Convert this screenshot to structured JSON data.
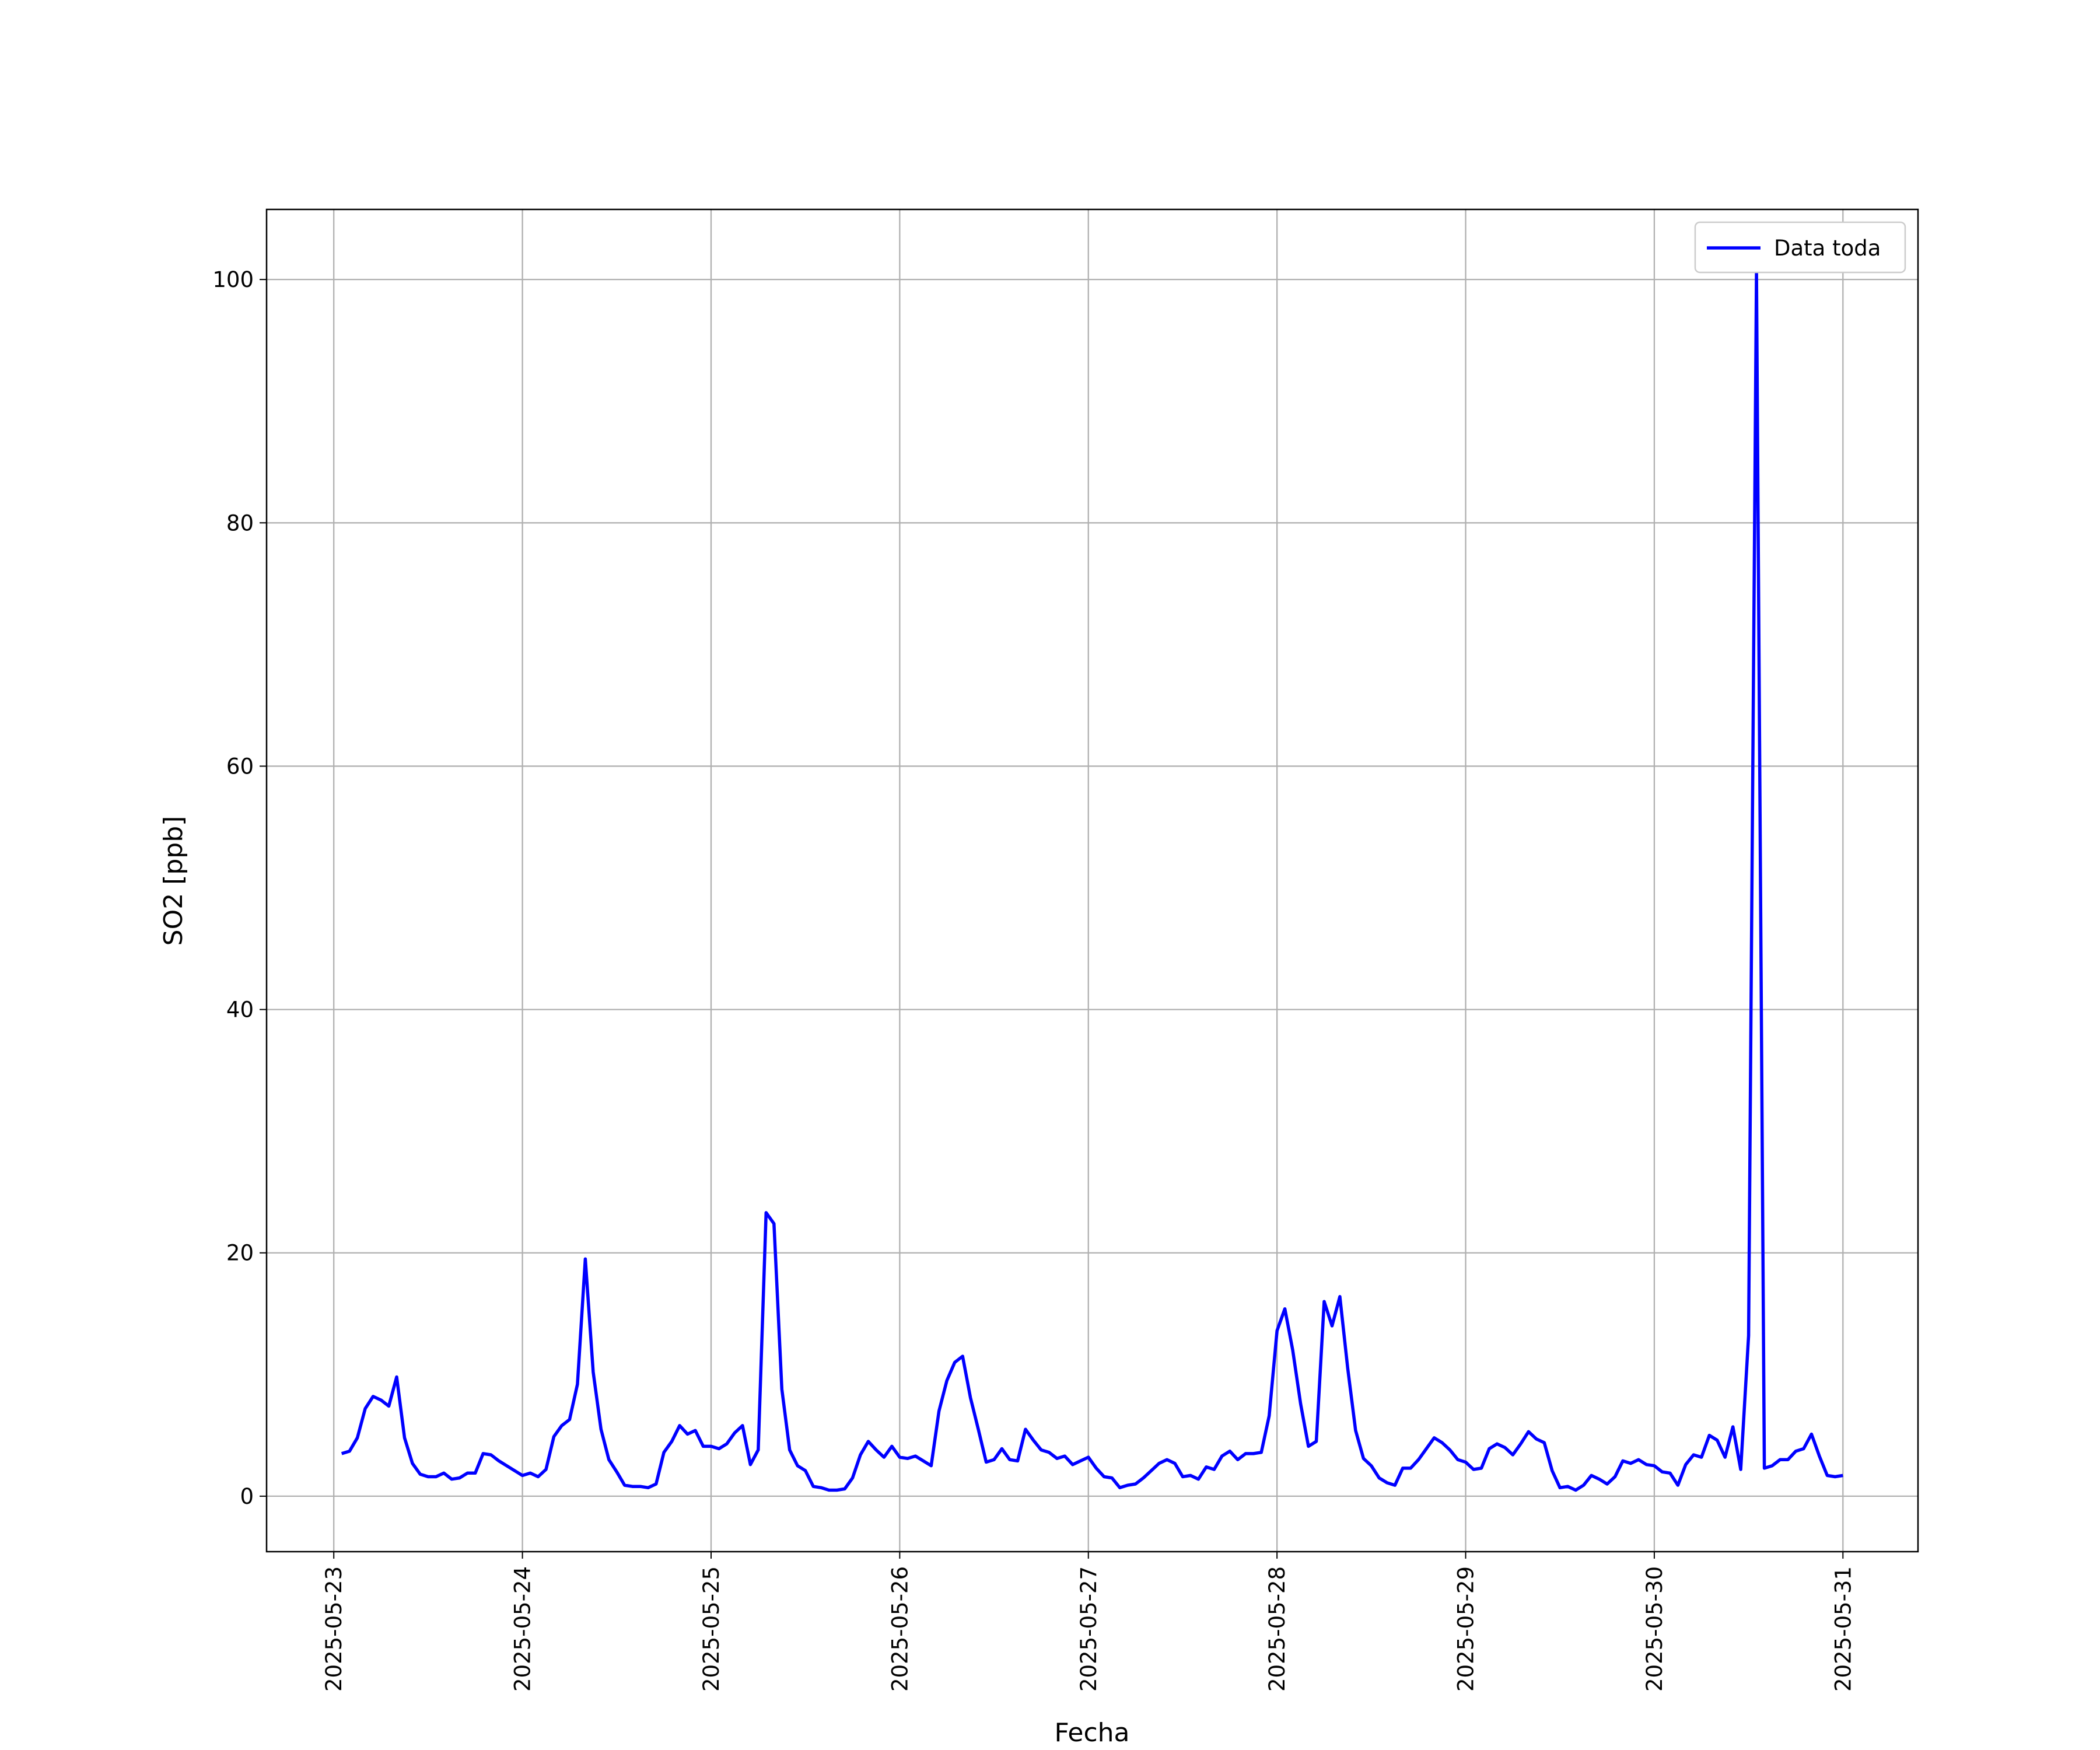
{
  "chart_data": {
    "type": "line",
    "xlabel": "Fecha",
    "ylabel": "SO2 [ppb]",
    "x": [
      "2025-05-23 01:00",
      "2025-05-23 02:00",
      "2025-05-23 03:00",
      "2025-05-23 04:00",
      "2025-05-23 05:00",
      "2025-05-23 06:00",
      "2025-05-23 07:00",
      "2025-05-23 08:00",
      "2025-05-23 09:00",
      "2025-05-23 10:00",
      "2025-05-23 11:00",
      "2025-05-23 12:00",
      "2025-05-23 13:00",
      "2025-05-23 14:00",
      "2025-05-23 15:00",
      "2025-05-23 16:00",
      "2025-05-23 17:00",
      "2025-05-23 18:00",
      "2025-05-23 19:00",
      "2025-05-23 20:00",
      "2025-05-23 21:00",
      "2025-05-23 22:00",
      "2025-05-23 23:00",
      "2025-05-24 00:00",
      "2025-05-24 01:00",
      "2025-05-24 02:00",
      "2025-05-24 03:00",
      "2025-05-24 04:00",
      "2025-05-24 05:00",
      "2025-05-24 06:00",
      "2025-05-24 07:00",
      "2025-05-24 08:00",
      "2025-05-24 09:00",
      "2025-05-24 10:00",
      "2025-05-24 11:00",
      "2025-05-24 12:00",
      "2025-05-24 13:00",
      "2025-05-24 14:00",
      "2025-05-24 15:00",
      "2025-05-24 16:00",
      "2025-05-24 17:00",
      "2025-05-24 18:00",
      "2025-05-24 19:00",
      "2025-05-24 20:00",
      "2025-05-24 21:00",
      "2025-05-24 22:00",
      "2025-05-24 23:00",
      "2025-05-25 00:00",
      "2025-05-25 01:00",
      "2025-05-25 02:00",
      "2025-05-25 03:00",
      "2025-05-25 04:00",
      "2025-05-25 05:00",
      "2025-05-25 06:00",
      "2025-05-25 07:00",
      "2025-05-25 08:00",
      "2025-05-25 09:00",
      "2025-05-25 10:00",
      "2025-05-25 11:00",
      "2025-05-25 12:00",
      "2025-05-25 13:00",
      "2025-05-25 14:00",
      "2025-05-25 15:00",
      "2025-05-25 16:00",
      "2025-05-25 17:00",
      "2025-05-25 18:00",
      "2025-05-25 19:00",
      "2025-05-25 20:00",
      "2025-05-25 21:00",
      "2025-05-25 22:00",
      "2025-05-25 23:00",
      "2025-05-26 00:00",
      "2025-05-26 01:00",
      "2025-05-26 02:00",
      "2025-05-26 03:00",
      "2025-05-26 04:00",
      "2025-05-26 05:00",
      "2025-05-26 06:00",
      "2025-05-26 07:00",
      "2025-05-26 08:00",
      "2025-05-26 09:00",
      "2025-05-26 10:00",
      "2025-05-26 11:00",
      "2025-05-26 12:00",
      "2025-05-26 13:00",
      "2025-05-26 14:00",
      "2025-05-26 15:00",
      "2025-05-26 16:00",
      "2025-05-26 17:00",
      "2025-05-26 18:00",
      "2025-05-26 19:00",
      "2025-05-26 20:00",
      "2025-05-26 21:00",
      "2025-05-26 22:00",
      "2025-05-26 23:00",
      "2025-05-27 00:00",
      "2025-05-27 01:00",
      "2025-05-27 02:00",
      "2025-05-27 03:00",
      "2025-05-27 04:00",
      "2025-05-27 05:00",
      "2025-05-27 06:00",
      "2025-05-27 07:00",
      "2025-05-27 08:00",
      "2025-05-27 09:00",
      "2025-05-27 10:00",
      "2025-05-27 11:00",
      "2025-05-27 12:00",
      "2025-05-27 13:00",
      "2025-05-27 14:00",
      "2025-05-27 15:00",
      "2025-05-27 16:00",
      "2025-05-27 17:00",
      "2025-05-27 18:00",
      "2025-05-27 19:00",
      "2025-05-27 20:00",
      "2025-05-27 21:00",
      "2025-05-27 22:00",
      "2025-05-27 23:00",
      "2025-05-28 00:00",
      "2025-05-28 01:00",
      "2025-05-28 02:00",
      "2025-05-28 03:00",
      "2025-05-28 04:00",
      "2025-05-28 05:00",
      "2025-05-28 06:00",
      "2025-05-28 07:00",
      "2025-05-28 08:00",
      "2025-05-28 09:00",
      "2025-05-28 10:00",
      "2025-05-28 11:00",
      "2025-05-28 12:00",
      "2025-05-28 13:00",
      "2025-05-28 14:00",
      "2025-05-28 15:00",
      "2025-05-28 16:00",
      "2025-05-28 17:00",
      "2025-05-28 18:00",
      "2025-05-28 19:00",
      "2025-05-28 20:00",
      "2025-05-28 21:00",
      "2025-05-28 22:00",
      "2025-05-28 23:00",
      "2025-05-29 00:00",
      "2025-05-29 01:00",
      "2025-05-29 02:00",
      "2025-05-29 03:00",
      "2025-05-29 04:00",
      "2025-05-29 05:00",
      "2025-05-29 06:00",
      "2025-05-29 07:00",
      "2025-05-29 08:00",
      "2025-05-29 09:00",
      "2025-05-29 10:00",
      "2025-05-29 11:00",
      "2025-05-29 12:00",
      "2025-05-29 13:00",
      "2025-05-29 14:00",
      "2025-05-29 15:00",
      "2025-05-29 16:00",
      "2025-05-29 17:00",
      "2025-05-29 18:00",
      "2025-05-29 19:00",
      "2025-05-29 20:00",
      "2025-05-29 21:00",
      "2025-05-29 22:00",
      "2025-05-29 23:00",
      "2025-05-30 00:00",
      "2025-05-30 01:00",
      "2025-05-30 02:00",
      "2025-05-30 03:00",
      "2025-05-30 04:00",
      "2025-05-30 05:00",
      "2025-05-30 06:00",
      "2025-05-30 07:00",
      "2025-05-30 08:00",
      "2025-05-30 09:00",
      "2025-05-30 10:00",
      "2025-05-30 11:00",
      "2025-05-30 12:00",
      "2025-05-30 13:00",
      "2025-05-30 14:00",
      "2025-05-30 15:00",
      "2025-05-30 16:00",
      "2025-05-30 17:00",
      "2025-05-30 18:00",
      "2025-05-30 19:00",
      "2025-05-30 20:00",
      "2025-05-30 21:00",
      "2025-05-30 22:00",
      "2025-05-30 23:00",
      "2025-05-31 00:00"
    ],
    "series": [
      {
        "name": "Data toda",
        "color": "#0000ff",
        "values": [
          3.5,
          3.7,
          4.8,
          7.2,
          8.2,
          7.9,
          7.4,
          9.8,
          4.8,
          2.7,
          1.8,
          1.6,
          1.6,
          1.9,
          1.4,
          1.5,
          1.9,
          1.9,
          3.5,
          3.4,
          2.9,
          2.5,
          2.1,
          1.7,
          1.9,
          1.6,
          2.2,
          4.9,
          5.8,
          6.3,
          9.2,
          19.5,
          10.2,
          5.5,
          3.0,
          2.0,
          0.9,
          0.8,
          0.8,
          0.7,
          1.0,
          3.6,
          4.5,
          5.8,
          5.1,
          5.4,
          4.1,
          4.1,
          3.9,
          4.3,
          5.2,
          5.8,
          2.6,
          3.8,
          23.3,
          22.4,
          8.8,
          3.8,
          2.5,
          2.1,
          0.8,
          0.7,
          0.5,
          0.5,
          0.6,
          1.5,
          3.4,
          4.5,
          3.8,
          3.2,
          4.1,
          3.2,
          3.1,
          3.3,
          2.9,
          2.5,
          7.0,
          9.5,
          11.0,
          11.5,
          8.1,
          5.5,
          2.8,
          3.0,
          3.9,
          3.0,
          2.9,
          5.5,
          4.6,
          3.8,
          3.6,
          3.1,
          3.3,
          2.6,
          2.9,
          3.2,
          2.3,
          1.6,
          1.5,
          0.7,
          0.9,
          1.0,
          1.5,
          2.1,
          2.7,
          3.0,
          2.7,
          1.6,
          1.7,
          1.4,
          2.4,
          2.2,
          3.3,
          3.7,
          3.0,
          3.5,
          3.5,
          3.6,
          6.6,
          13.6,
          15.4,
          12.0,
          7.6,
          4.1,
          4.5,
          16.0,
          14.0,
          16.4,
          10.5,
          5.4,
          3.1,
          2.5,
          1.5,
          1.1,
          0.9,
          2.3,
          2.3,
          3.0,
          3.9,
          4.8,
          4.4,
          3.8,
          3.0,
          2.8,
          2.2,
          2.3,
          3.9,
          4.3,
          4.0,
          3.4,
          4.3,
          5.3,
          4.7,
          4.4,
          2.1,
          0.7,
          0.8,
          0.5,
          0.9,
          1.7,
          1.4,
          1.0,
          1.6,
          2.9,
          2.7,
          3.0,
          2.6,
          2.5,
          2.0,
          1.9,
          0.9,
          2.6,
          3.4,
          3.2,
          5.0,
          4.6,
          3.2,
          5.7,
          2.2,
          13.2,
          100.7,
          2.3,
          2.5,
          3.0,
          3.0,
          3.7,
          3.9,
          5.1,
          3.3,
          1.7,
          1.6,
          1.7
        ]
      }
    ],
    "xlim": [
      "2025-05-22 15:27",
      "2025-05-31 09:33"
    ],
    "xticks": [
      "2025-05-23",
      "2025-05-24",
      "2025-05-25",
      "2025-05-26",
      "2025-05-27",
      "2025-05-28",
      "2025-05-29",
      "2025-05-30",
      "2025-05-31"
    ],
    "ylim": [
      -4.56,
      105.76
    ],
    "yticks": [
      0,
      20,
      40,
      60,
      80,
      100
    ],
    "grid": true,
    "legend": "upper right"
  }
}
